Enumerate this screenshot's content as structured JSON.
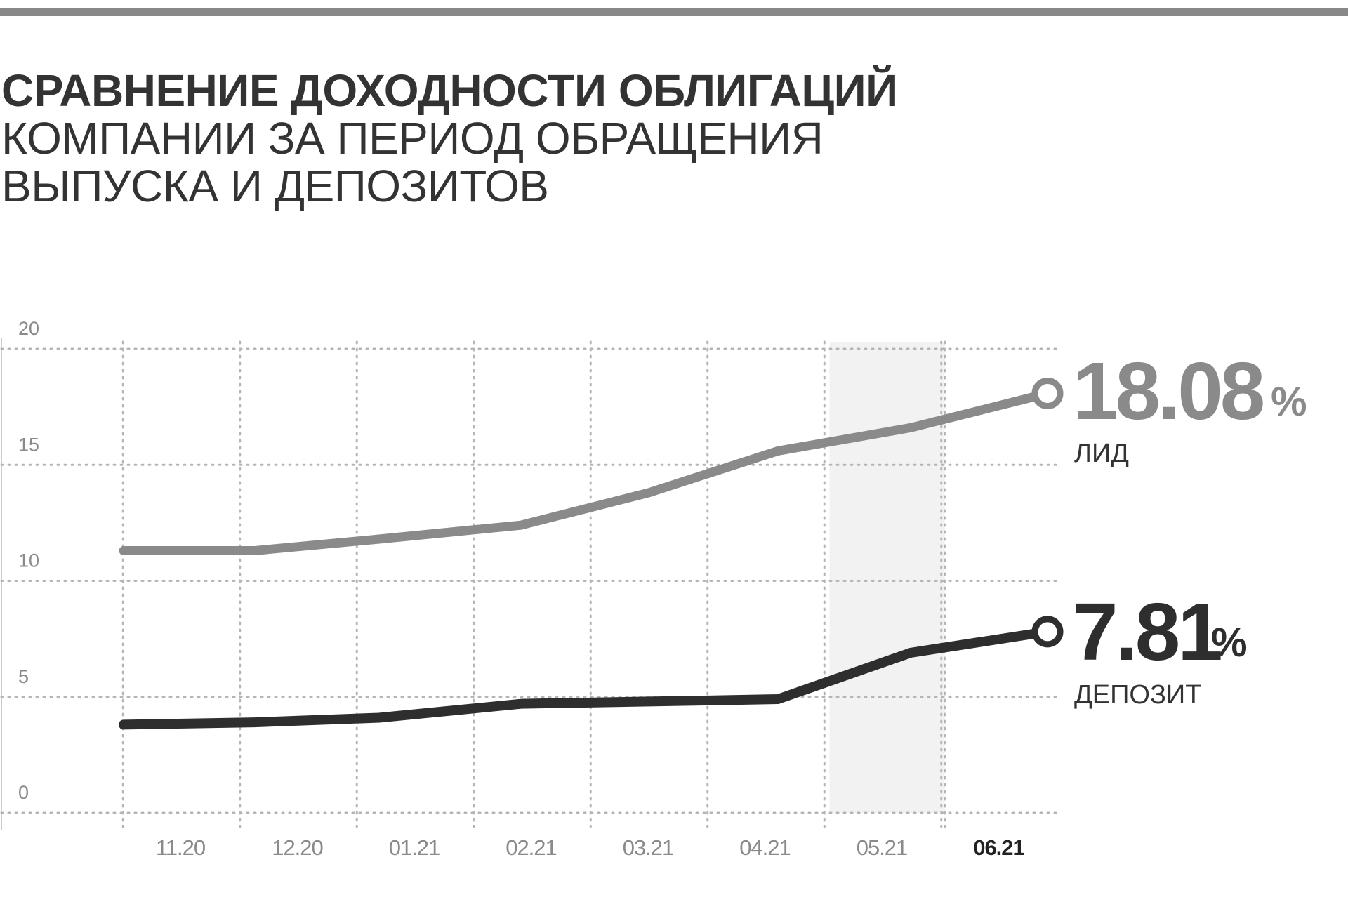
{
  "title": {
    "line1": "СРАВНЕНИЕ ДОХОДНОСТИ ОБЛИГАЦИЙ",
    "line2": "КОМПАНИИ ЗА ПЕРИОД ОБРАЩЕНИЯ",
    "line3": "ВЫПУСКА И ДЕПОЗИТОВ"
  },
  "colors": {
    "series_light": "#8a8a8a",
    "series_dark": "#2e2e2e",
    "grid": "#b5b5b5",
    "highlight": "#f2f2f2"
  },
  "chart_data": {
    "type": "line",
    "categories": [
      "11.20",
      "12.20",
      "01.21",
      "02.21",
      "03.21",
      "04.21",
      "05.21",
      "06.21"
    ],
    "highlight_category": "06.21",
    "ylim": [
      0,
      20
    ],
    "yticks": [
      0,
      5,
      10,
      15,
      20
    ],
    "grid": true,
    "series": [
      {
        "name": "ЛИД",
        "values": [
          11.3,
          11.3,
          11.8,
          12.4,
          13.8,
          15.6,
          16.6,
          18.08
        ],
        "end_label": "18.08",
        "unit": "%",
        "color": "#8a8a8a"
      },
      {
        "name": "ДЕПОЗИТ",
        "values": [
          3.8,
          3.9,
          4.1,
          4.7,
          4.8,
          4.9,
          6.9,
          7.81
        ],
        "end_label": "7.81",
        "unit": "%",
        "color": "#2e2e2e"
      }
    ]
  }
}
